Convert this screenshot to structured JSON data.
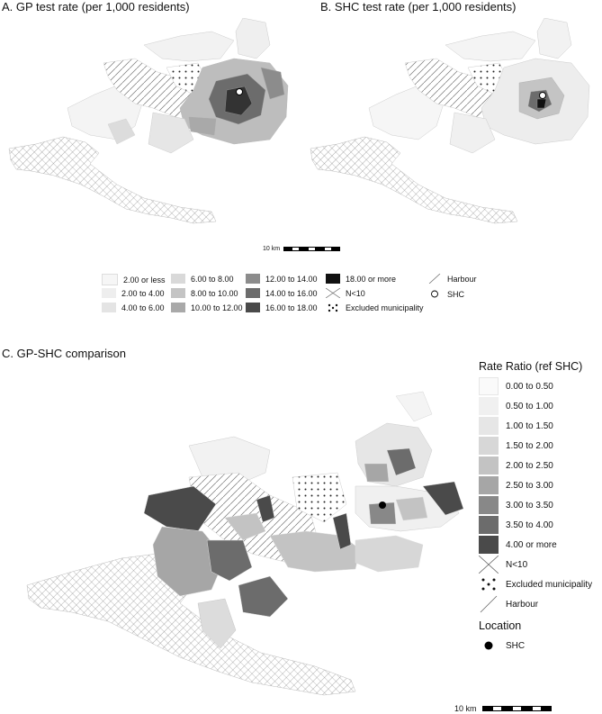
{
  "panels": {
    "a_title": "A. GP test rate (per 1,000 residents)",
    "b_title": "B. SHC test rate (per 1,000 residents)",
    "c_title": "C. GP-SHC comparison"
  },
  "scale": {
    "label": "10 km"
  },
  "rate_legend": {
    "items": [
      {
        "label": "2.00 or less",
        "color": "#f6f6f6"
      },
      {
        "label": "2.00 to 4.00",
        "color": "#eeeeee"
      },
      {
        "label": "4.00 to 6.00",
        "color": "#e4e4e4"
      },
      {
        "label": "6.00 to 8.00",
        "color": "#d9d9d9"
      },
      {
        "label": "8.00 to 10.00",
        "color": "#c4c4c4"
      },
      {
        "label": "10.00 to 12.00",
        "color": "#a9a9a9"
      },
      {
        "label": "12.00 to 14.00",
        "color": "#8c8c8c"
      },
      {
        "label": "14.00 to 16.00",
        "color": "#6c6c6c"
      },
      {
        "label": "16.00 to 18.00",
        "color": "#4a4a4a"
      },
      {
        "label": "18.00 or more",
        "color": "#111111"
      },
      {
        "label": "N<10",
        "pattern": "cross"
      },
      {
        "label": "Excluded municipality",
        "pattern": "dots"
      },
      {
        "label": "Harbour",
        "pattern": "diag"
      },
      {
        "label": "SHC",
        "pattern": "open-circle"
      }
    ]
  },
  "ratio_legend": {
    "title": "Rate Ratio (ref SHC)",
    "items": [
      {
        "label": "0.00 to 0.50",
        "color": "#fafafa"
      },
      {
        "label": "0.50 to 1.00",
        "color": "#f0f0f0"
      },
      {
        "label": "1.00 to 1.50",
        "color": "#e6e6e6"
      },
      {
        "label": "1.50 to 2.00",
        "color": "#d7d7d7"
      },
      {
        "label": "2.00 to 2.50",
        "color": "#c3c3c3"
      },
      {
        "label": "2.50 to 3.00",
        "color": "#a6a6a6"
      },
      {
        "label": "3.00 to 3.50",
        "color": "#888888"
      },
      {
        "label": "3.50 to 4.00",
        "color": "#6c6c6c"
      },
      {
        "label": "4.00 or more",
        "color": "#4a4a4a"
      },
      {
        "label": "N<10",
        "pattern": "cross"
      },
      {
        "label": "Excluded municipality",
        "pattern": "dots"
      },
      {
        "label": "Harbour",
        "pattern": "diag"
      }
    ],
    "location_title": "Location",
    "location_item": "SHC"
  }
}
